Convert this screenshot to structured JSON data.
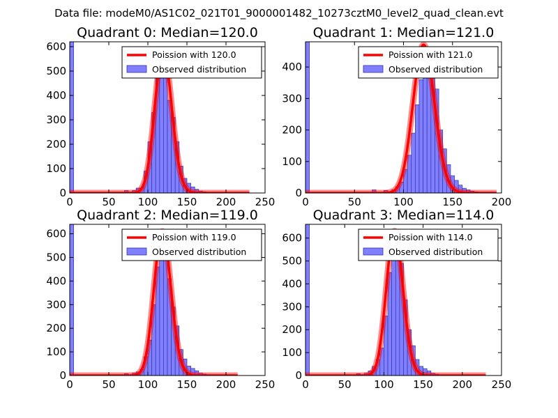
{
  "figure": {
    "suptitle": "Data file: modeM0/AS1C02_021T01_9000001482_10273cztM0_level2_quad_clean.evt"
  },
  "colors": {
    "histogram_fill": "#8080ff",
    "histogram_edge": "#3333aa",
    "poisson_line": "#ff0000",
    "poisson_line_alpha": 0.45
  },
  "chart_data": [
    {
      "type": "bar",
      "title": "Quadrant 0: Median=120.0",
      "median": 120.0,
      "legend": [
        "Poission with 120.0",
        "Observed distribution"
      ],
      "legend_position": "top-right",
      "xlim": [
        0,
        250
      ],
      "ylim": [
        0,
        620
      ],
      "xticks": [
        0,
        50,
        100,
        150,
        200,
        250
      ],
      "yticks": [
        0,
        100,
        200,
        300,
        400,
        500,
        600
      ],
      "bin_width": 5,
      "bins": [
        [
          0,
          620
        ],
        [
          70,
          10
        ],
        [
          80,
          10
        ],
        [
          85,
          20
        ],
        [
          90,
          20
        ],
        [
          95,
          90
        ],
        [
          100,
          210
        ],
        [
          105,
          330
        ],
        [
          110,
          510
        ],
        [
          115,
          580
        ],
        [
          120,
          500
        ],
        [
          125,
          380
        ],
        [
          130,
          310
        ],
        [
          135,
          210
        ],
        [
          140,
          110
        ],
        [
          145,
          60
        ],
        [
          150,
          40
        ],
        [
          155,
          25
        ],
        [
          160,
          15
        ],
        [
          165,
          8
        ],
        [
          170,
          5
        ],
        [
          175,
          3
        ]
      ],
      "poisson": {
        "lambda": 120.0,
        "peak": 580,
        "x_range": [
          0,
          230
        ]
      }
    },
    {
      "type": "bar",
      "title": "Quadrant 1: Median=121.0",
      "median": 121.0,
      "legend": [
        "Poission with 121.0",
        "Observed distribution"
      ],
      "legend_position": "top-right",
      "xlim": [
        0,
        200
      ],
      "ylim": [
        0,
        480
      ],
      "xticks": [
        0,
        50,
        100,
        150,
        200
      ],
      "yticks": [
        0,
        100,
        200,
        300,
        400
      ],
      "bin_width": 4,
      "bins": [
        [
          0,
          480
        ],
        [
          68,
          10
        ],
        [
          80,
          8
        ],
        [
          88,
          10
        ],
        [
          92,
          20
        ],
        [
          96,
          35
        ],
        [
          100,
          75
        ],
        [
          104,
          120
        ],
        [
          108,
          190
        ],
        [
          112,
          280
        ],
        [
          116,
          360
        ],
        [
          120,
          410
        ],
        [
          124,
          440
        ],
        [
          128,
          380
        ],
        [
          132,
          330
        ],
        [
          136,
          200
        ],
        [
          140,
          140
        ],
        [
          144,
          90
        ],
        [
          148,
          55
        ],
        [
          152,
          40
        ],
        [
          156,
          25
        ],
        [
          160,
          15
        ],
        [
          164,
          10
        ],
        [
          168,
          6
        ],
        [
          172,
          4
        ]
      ],
      "poisson": {
        "lambda": 121.0,
        "peak": 470,
        "x_range": [
          0,
          195
        ]
      }
    },
    {
      "type": "bar",
      "title": "Quadrant 2: Median=119.0",
      "median": 119.0,
      "legend": [
        "Poission with 119.0",
        "Observed distribution"
      ],
      "legend_position": "top-right",
      "xlim": [
        0,
        250
      ],
      "ylim": [
        0,
        640
      ],
      "xticks": [
        0,
        50,
        100,
        150,
        200,
        250
      ],
      "yticks": [
        0,
        100,
        200,
        300,
        400,
        500,
        600
      ],
      "bin_width": 5,
      "bins": [
        [
          0,
          640
        ],
        [
          70,
          8
        ],
        [
          80,
          10
        ],
        [
          85,
          15
        ],
        [
          90,
          25
        ],
        [
          95,
          80
        ],
        [
          100,
          150
        ],
        [
          105,
          300
        ],
        [
          110,
          460
        ],
        [
          115,
          600
        ],
        [
          120,
          580
        ],
        [
          125,
          410
        ],
        [
          130,
          290
        ],
        [
          135,
          210
        ],
        [
          140,
          110
        ],
        [
          145,
          70
        ],
        [
          150,
          40
        ],
        [
          155,
          30
        ],
        [
          160,
          20
        ],
        [
          165,
          10
        ],
        [
          170,
          6
        ]
      ],
      "poisson": {
        "lambda": 119.0,
        "peak": 610,
        "x_range": [
          0,
          215
        ]
      }
    },
    {
      "type": "bar",
      "title": "Quadrant 3: Median=114.0",
      "median": 114.0,
      "legend": [
        "Poission with 114.0",
        "Observed distribution"
      ],
      "legend_position": "top-right",
      "xlim": [
        0,
        250
      ],
      "ylim": [
        0,
        660
      ],
      "xticks": [
        0,
        50,
        100,
        150,
        200,
        250
      ],
      "yticks": [
        0,
        100,
        200,
        300,
        400,
        500,
        600
      ],
      "bin_width": 5,
      "bins": [
        [
          0,
          660
        ],
        [
          65,
          8
        ],
        [
          75,
          10
        ],
        [
          80,
          20
        ],
        [
          85,
          40
        ],
        [
          90,
          70
        ],
        [
          95,
          120
        ],
        [
          100,
          260
        ],
        [
          105,
          450
        ],
        [
          110,
          600
        ],
        [
          115,
          580
        ],
        [
          120,
          490
        ],
        [
          125,
          330
        ],
        [
          130,
          200
        ],
        [
          135,
          130
        ],
        [
          140,
          70
        ],
        [
          145,
          40
        ],
        [
          150,
          30
        ],
        [
          155,
          20
        ],
        [
          160,
          10
        ],
        [
          165,
          6
        ]
      ],
      "poisson": {
        "lambda": 114.0,
        "peak": 630,
        "x_range": [
          0,
          230
        ]
      }
    }
  ]
}
